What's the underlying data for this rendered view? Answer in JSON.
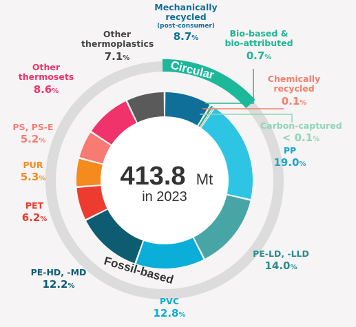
{
  "center": {
    "value": "413.8",
    "unit": "Mt",
    "year_label": "in 2023"
  },
  "ring_labels": {
    "circular": "Circular",
    "fossil": "Fossil-based"
  },
  "labels": {
    "mech": {
      "name_line1": "Mechanically",
      "name_line2": "recycled",
      "sub": "(post-consumer)",
      "pct": "8.7",
      "unit": "%"
    },
    "bio": {
      "name_line1": "Bio-based &",
      "name_line2": "bio-attributed",
      "pct": "0.7",
      "unit": "%"
    },
    "chem": {
      "name_line1": "Chemically",
      "name_line2": "recycled",
      "pct": "0.1",
      "unit": "%"
    },
    "carbon": {
      "name": "Carbon-captured",
      "pct": "< 0.1",
      "unit": "%"
    },
    "pp": {
      "name": "PP",
      "pct": "19.0",
      "unit": "%"
    },
    "pe_ld": {
      "name": "PE-LD, -LLD",
      "pct": "14.0",
      "unit": "%"
    },
    "pvc": {
      "name": "PVC",
      "pct": "12.8",
      "unit": "%"
    },
    "pe_hd": {
      "name": "PE-HD, -MD",
      "pct": "12.2",
      "unit": "%"
    },
    "pet": {
      "name": "PET",
      "pct": "6.2",
      "unit": "%"
    },
    "pur": {
      "name": "PUR",
      "pct": "5.3",
      "unit": "%"
    },
    "ps": {
      "name": "PS, PS-E",
      "pct": "5.2",
      "unit": "%"
    },
    "other_thermosets": {
      "name_line1": "Other",
      "name_line2": "thermosets",
      "pct": "8.6",
      "unit": "%"
    },
    "other_thermoplastics": {
      "name_line1": "Other",
      "name_line2": "thermoplastics",
      "pct": "7.1",
      "unit": "%"
    }
  },
  "chart_data": {
    "type": "pie",
    "total": 413.8,
    "unit": "Mt",
    "year": "2023",
    "slices": [
      {
        "name": "Mechanically recycled (post-consumer)",
        "value": 8.7,
        "color": "#0f6f99",
        "group": "Circular"
      },
      {
        "name": "Bio-based & bio-attributed",
        "value": 0.7,
        "color": "#1fb594",
        "group": "Circular"
      },
      {
        "name": "Chemically recycled",
        "value": 0.1,
        "color": "#f47e6d",
        "group": "Circular"
      },
      {
        "name": "Carbon-captured",
        "value": 0.05,
        "color": "#8fd6b8",
        "group": "Circular"
      },
      {
        "name": "PP",
        "value": 19.0,
        "color": "#2ec5e4",
        "group": "Fossil-based"
      },
      {
        "name": "PE-LD, -LLD",
        "value": 14.0,
        "color": "#48a5a6",
        "group": "Fossil-based"
      },
      {
        "name": "PVC",
        "value": 12.8,
        "color": "#0aaed8",
        "group": "Fossil-based"
      },
      {
        "name": "PE-HD, -MD",
        "value": 12.2,
        "color": "#0d5c72",
        "group": "Fossil-based"
      },
      {
        "name": "PET",
        "value": 6.2,
        "color": "#ee3b30",
        "group": "Fossil-based"
      },
      {
        "name": "PUR",
        "value": 5.3,
        "color": "#f58a1f",
        "group": "Fossil-based"
      },
      {
        "name": "PS, PS-E",
        "value": 5.2,
        "color": "#f97a72",
        "group": "Fossil-based"
      },
      {
        "name": "Other thermosets",
        "value": 8.6,
        "color": "#f0336b",
        "group": "Fossil-based"
      },
      {
        "name": "Other thermoplastics",
        "value": 7.1,
        "color": "#5a5a5a",
        "group": "Fossil-based"
      }
    ],
    "colors": {
      "circular_band": "#1bb89a",
      "fossil_band": "#dcdcdc"
    }
  }
}
